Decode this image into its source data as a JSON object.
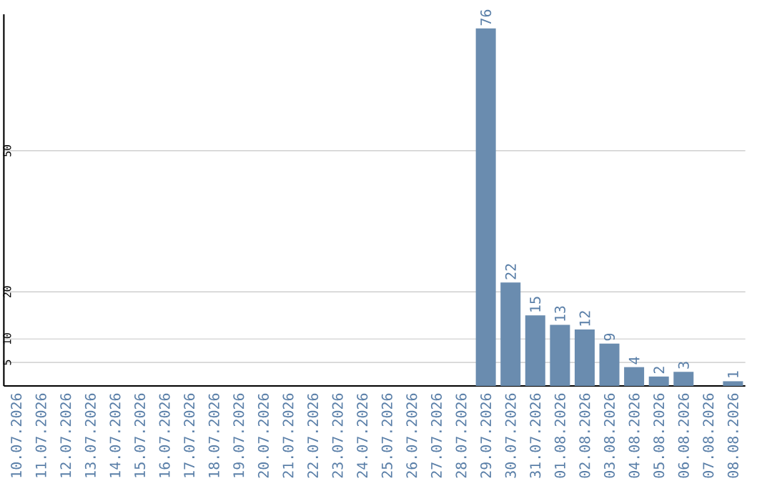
{
  "chart_data": {
    "type": "bar",
    "categories": [
      "10.07.2026",
      "11.07.2026",
      "12.07.2026",
      "13.07.2026",
      "14.07.2026",
      "15.07.2026",
      "16.07.2026",
      "17.07.2026",
      "18.07.2026",
      "19.07.2026",
      "20.07.2026",
      "21.07.2026",
      "22.07.2026",
      "23.07.2026",
      "24.07.2026",
      "25.07.2026",
      "26.07.2026",
      "27.07.2026",
      "28.07.2026",
      "29.07.2026",
      "30.07.2026",
      "31.07.2026",
      "01.08.2026",
      "02.08.2026",
      "03.08.2026",
      "04.08.2026",
      "05.08.2026",
      "06.08.2026",
      "07.08.2026",
      "08.08.2026"
    ],
    "values": [
      0,
      0,
      0,
      0,
      0,
      0,
      0,
      0,
      0,
      0,
      0,
      0,
      0,
      0,
      0,
      0,
      0,
      0,
      0,
      76,
      22,
      15,
      13,
      12,
      9,
      4,
      2,
      3,
      0,
      1
    ],
    "value_labels": [
      null,
      null,
      null,
      null,
      null,
      null,
      null,
      null,
      null,
      null,
      null,
      null,
      null,
      null,
      null,
      null,
      null,
      null,
      null,
      "76",
      "22",
      "15",
      "13",
      "12",
      "9",
      "4",
      "2",
      "3",
      null,
      "1"
    ],
    "color": "#6a8caf",
    "ylim": [
      0,
      79
    ],
    "yticks": [
      5,
      10,
      20,
      50
    ],
    "grid": "y"
  }
}
